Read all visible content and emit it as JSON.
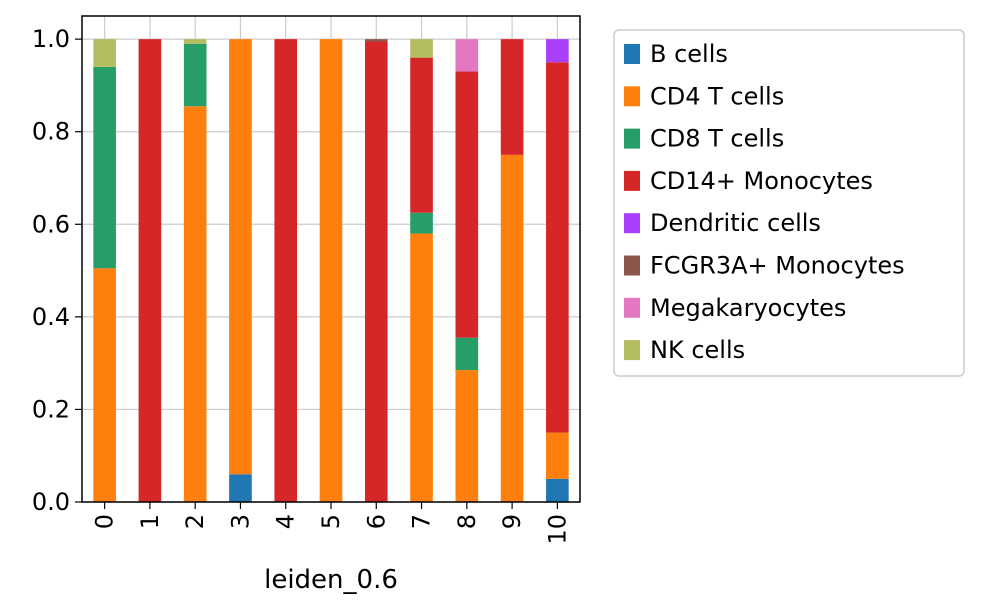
{
  "chart_data": {
    "type": "bar",
    "stacked": true,
    "xlabel": "leiden_0.6",
    "ylabel": "",
    "ylim": [
      0,
      1.05
    ],
    "yticks": [
      "0.0",
      "0.2",
      "0.4",
      "0.6",
      "0.8",
      "1.0"
    ],
    "categories": [
      "0",
      "1",
      "2",
      "3",
      "4",
      "5",
      "6",
      "7",
      "8",
      "9",
      "10"
    ],
    "grid": true,
    "legend_position": "outside-right",
    "series": [
      {
        "name": "B cells",
        "color": "#1f77b4",
        "values": [
          0,
          0,
          0,
          0.06,
          0,
          0,
          0,
          0,
          0,
          0,
          0.05
        ]
      },
      {
        "name": "CD4 T cells",
        "color": "#ff7f0e",
        "values": [
          0.505,
          0,
          0.855,
          0.94,
          0,
          1.0,
          0,
          0.58,
          0.285,
          0.75,
          0.1
        ]
      },
      {
        "name": "CD8 T cells",
        "color": "#279e68",
        "values": [
          0.435,
          0,
          0.135,
          0,
          0,
          0,
          0,
          0.045,
          0.07,
          0,
          0
        ]
      },
      {
        "name": "CD14+ Monocytes",
        "color": "#d62728",
        "values": [
          0,
          1.0,
          0,
          0,
          1.0,
          0,
          0.995,
          0.335,
          0.575,
          0.25,
          0.8
        ]
      },
      {
        "name": "Dendritic cells",
        "color": "#aa40fc",
        "values": [
          0,
          0,
          0,
          0,
          0,
          0,
          0,
          0,
          0,
          0,
          0.05
        ]
      },
      {
        "name": "FCGR3A+ Monocytes",
        "color": "#8c564b",
        "values": [
          0,
          0,
          0,
          0,
          0,
          0,
          0.005,
          0,
          0,
          0,
          0
        ]
      },
      {
        "name": "Megakaryocytes",
        "color": "#e377c2",
        "values": [
          0,
          0,
          0,
          0,
          0,
          0,
          0,
          0,
          0.07,
          0,
          0
        ]
      },
      {
        "name": "NK cells",
        "color": "#b5bd61",
        "values": [
          0.06,
          0,
          0.01,
          0,
          0,
          0,
          0,
          0.04,
          0,
          0,
          0
        ]
      }
    ]
  }
}
